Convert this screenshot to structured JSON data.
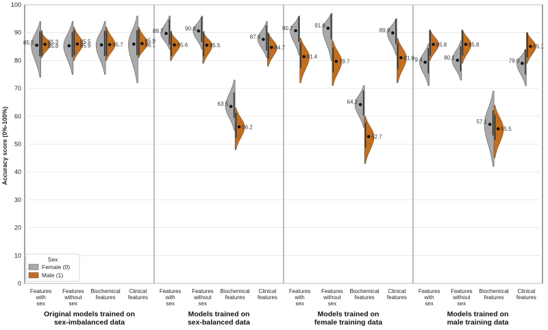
{
  "chart_data": {
    "type": "violin",
    "ylabel": "Accuracy score (0%-100%)",
    "ylim": [
      0,
      100
    ],
    "yticks": [
      0,
      10,
      20,
      30,
      40,
      50,
      60,
      70,
      80,
      90,
      100
    ],
    "legend": {
      "title": "Sex",
      "placement": "bottom-left",
      "entries": [
        {
          "label": "Female (0)",
          "color": "#a9a9a9"
        },
        {
          "label": "Male (1)",
          "color": "#c46e1e"
        }
      ]
    },
    "groups": [
      {
        "label_lines": [
          "Original models trained on",
          "sex-imbalanced data"
        ],
        "categories": [
          {
            "label_lines": [
              "Features",
              "with",
              "sex"
            ],
            "female": {
              "mean": 85.5,
              "min": 74,
              "max": 94
            },
            "male": {
              "mean": 85.8,
              "min": 81,
              "max": 90
            },
            "female_label": "85.5",
            "male_labels": [
              "85.3",
              "85.8"
            ]
          },
          {
            "label_lines": [
              "Features",
              "without",
              "sex"
            ],
            "female": {
              "mean": 85.3,
              "min": 75,
              "max": 94
            },
            "male": {
              "mean": 85.9,
              "min": 80,
              "max": 92
            },
            "female_label": "",
            "male_labels": [
              "85.5",
              "85.9"
            ]
          },
          {
            "label_lines": [
              "Biochemical",
              "features"
            ],
            "female": {
              "mean": 85.6,
              "min": 75,
              "max": 94
            },
            "male": {
              "mean": 85.7,
              "min": 80,
              "max": 92
            },
            "female_label": "",
            "male_labels": [
              "85.7"
            ]
          },
          {
            "label_lines": [
              "Clinical",
              "features"
            ],
            "female": {
              "mean": 85.9,
              "min": 72,
              "max": 96
            },
            "male": {
              "mean": 86.1,
              "min": 81,
              "max": 92
            },
            "female_label": "",
            "male_labels": [
              "85.9",
              "86.1"
            ]
          }
        ]
      },
      {
        "label_lines": [
          "Models trained on",
          "sex-balanced data"
        ],
        "categories": [
          {
            "label_lines": [
              "Features",
              "with",
              "sex"
            ],
            "female": {
              "mean": 89.7,
              "min": 84,
              "max": 96
            },
            "male": {
              "mean": 85.6,
              "min": 80,
              "max": 90
            },
            "female_label": "89.7",
            "male_labels": [
              "85.6"
            ]
          },
          {
            "label_lines": [
              "Features",
              "without",
              "sex"
            ],
            "female": {
              "mean": 90.6,
              "min": 84,
              "max": 96
            },
            "male": {
              "mean": 85.5,
              "min": 79,
              "max": 90
            },
            "female_label": "90.6",
            "male_labels": [
              "85.5"
            ]
          },
          {
            "label_lines": [
              "Biochemical",
              "features"
            ],
            "female": {
              "mean": 63.5,
              "min": 55,
              "max": 73
            },
            "male": {
              "mean": 56.2,
              "min": 48,
              "max": 63
            },
            "female_label": "63.5",
            "male_labels": [
              "56.2"
            ]
          },
          {
            "label_lines": [
              "Clinical",
              "features"
            ],
            "female": {
              "mean": 87.6,
              "min": 81,
              "max": 94
            },
            "male": {
              "mean": 84.7,
              "min": 78,
              "max": 90
            },
            "female_label": "87.6",
            "male_labels": [
              "84.7"
            ]
          }
        ]
      },
      {
        "label_lines": [
          "Models trained on",
          "female training data"
        ],
        "categories": [
          {
            "label_lines": [
              "Features",
              "with",
              "sex"
            ],
            "female": {
              "mean": 90.7,
              "min": 82,
              "max": 96
            },
            "male": {
              "mean": 81.4,
              "min": 72,
              "max": 88
            },
            "female_label": "90.7",
            "male_labels": [
              "81.4"
            ]
          },
          {
            "label_lines": [
              "Features",
              "without",
              "sex"
            ],
            "female": {
              "mean": 91.6,
              "min": 80,
              "max": 97
            },
            "male": {
              "mean": 79.7,
              "min": 71,
              "max": 87
            },
            "female_label": "91.6",
            "male_labels": [
              "79.7"
            ]
          },
          {
            "label_lines": [
              "Biochemical",
              "features"
            ],
            "female": {
              "mean": 64.2,
              "min": 56,
              "max": 71
            },
            "male": {
              "mean": 52.7,
              "min": 43,
              "max": 60
            },
            "female_label": "64.2",
            "male_labels": [
              "52.7"
            ]
          },
          {
            "label_lines": [
              "Clinical",
              "features"
            ],
            "female": {
              "mean": 89.9,
              "min": 82,
              "max": 95
            },
            "male": {
              "mean": 81.0,
              "min": 72,
              "max": 88
            },
            "female_label": "89.9",
            "male_labels": [
              "81.0"
            ]
          }
        ]
      },
      {
        "label_lines": [
          "Models trained on",
          "male training data"
        ],
        "categories": [
          {
            "label_lines": [
              "Features",
              "with",
              "sex"
            ],
            "female": {
              "mean": 79.4,
              "min": 71,
              "max": 86
            },
            "male": {
              "mean": 85.8,
              "min": 80,
              "max": 91
            },
            "female_label": "79.4",
            "male_labels": [
              "85.8"
            ]
          },
          {
            "label_lines": [
              "Features",
              "without",
              "sex"
            ],
            "female": {
              "mean": 80.1,
              "min": 73,
              "max": 87
            },
            "male": {
              "mean": 85.8,
              "min": 79,
              "max": 91
            },
            "female_label": "80.1",
            "male_labels": [
              "85.8"
            ]
          },
          {
            "label_lines": [
              "Biochemical",
              "features"
            ],
            "female": {
              "mean": 57.1,
              "min": 42,
              "max": 69
            },
            "male": {
              "mean": 55.5,
              "min": 45,
              "max": 64
            },
            "female_label": "57.1",
            "male_labels": [
              "55.5"
            ]
          },
          {
            "label_lines": [
              "Clinical",
              "features"
            ],
            "female": {
              "mean": 79.0,
              "min": 71,
              "max": 84
            },
            "male": {
              "mean": 85.1,
              "min": 79,
              "max": 90
            },
            "female_label": "79.0",
            "male_labels": [
              "85.1"
            ]
          }
        ]
      }
    ]
  }
}
